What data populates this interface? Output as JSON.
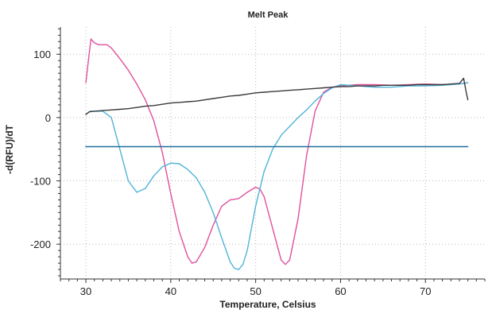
{
  "chart_data": {
    "type": "line",
    "title": "Melt Peak",
    "xlabel": "Temperature, Celsius",
    "ylabel": "-d(RFU)/dT",
    "xlim": [
      27,
      77
    ],
    "ylim": [
      -255,
      143
    ],
    "xticks": [
      30,
      40,
      50,
      60,
      70
    ],
    "yticks": [
      100,
      0,
      -100,
      -200
    ],
    "grid": true,
    "series": [
      {
        "color": "#e0509e",
        "x": [
          30,
          30.3,
          30.6,
          31,
          31.5,
          32.5,
          33,
          34,
          35,
          36,
          37,
          38,
          39,
          40,
          41,
          42,
          42.5,
          43,
          44,
          45,
          46,
          47,
          48,
          49,
          50,
          50.5,
          51,
          52,
          53,
          53.5,
          54,
          55,
          56,
          57,
          58,
          59,
          60,
          62,
          64,
          66,
          68,
          70,
          72,
          74,
          75
        ],
        "y": [
          55,
          90,
          124,
          118,
          115,
          115,
          110,
          93,
          75,
          53,
          28,
          -5,
          -55,
          -120,
          -180,
          -220,
          -230,
          -228,
          -205,
          -170,
          -140,
          -130,
          -128,
          -118,
          -110,
          -113,
          -125,
          -175,
          -225,
          -232,
          -225,
          -160,
          -60,
          10,
          40,
          48,
          50,
          52,
          52,
          51,
          52,
          53,
          52,
          53,
          55
        ]
      },
      {
        "color": "#4fb3d9",
        "x": [
          30,
          30.5,
          31,
          32,
          33,
          34,
          35,
          36,
          37,
          38,
          39,
          40,
          41,
          42,
          43,
          44,
          45,
          46,
          47,
          47.5,
          48,
          48.5,
          49,
          50,
          51,
          52,
          53,
          54,
          55,
          56,
          57,
          58,
          59,
          60,
          62,
          64,
          66,
          68,
          70,
          72,
          74,
          75
        ],
        "y": [
          5,
          10,
          10,
          10,
          0,
          -50,
          -100,
          -118,
          -112,
          -92,
          -78,
          -72,
          -73,
          -82,
          -95,
          -118,
          -150,
          -190,
          -228,
          -238,
          -240,
          -232,
          -210,
          -140,
          -85,
          -50,
          -28,
          -14,
          0,
          12,
          26,
          38,
          47,
          52,
          50,
          48,
          48,
          50,
          50,
          51,
          53,
          55
        ]
      },
      {
        "color": "#3a3a3a",
        "x": [
          30,
          30.4,
          31,
          32,
          33,
          34,
          35,
          36,
          37,
          38,
          39,
          40,
          41,
          42,
          43,
          44,
          45,
          46,
          47,
          48,
          49,
          50,
          51,
          52,
          53,
          54,
          55,
          56,
          57,
          58,
          59,
          60,
          61,
          62,
          63,
          64,
          65,
          66,
          67,
          68,
          69,
          70,
          71,
          72,
          73,
          74,
          74.5,
          74.8,
          75
        ],
        "y": [
          5,
          9,
          10,
          11,
          12,
          13,
          14,
          16,
          18,
          19,
          21,
          23,
          24,
          25,
          26,
          28,
          30,
          32,
          34,
          35,
          37,
          39,
          40,
          41,
          42,
          43,
          44,
          45,
          46,
          47,
          48,
          49,
          49,
          50,
          50,
          50,
          51,
          51,
          51,
          51,
          52,
          52,
          52,
          52,
          53,
          54,
          62,
          40,
          28
        ]
      },
      {
        "color": "#1f6e9c",
        "x": [
          30,
          75
        ],
        "y": [
          -46,
          -46
        ]
      }
    ]
  }
}
